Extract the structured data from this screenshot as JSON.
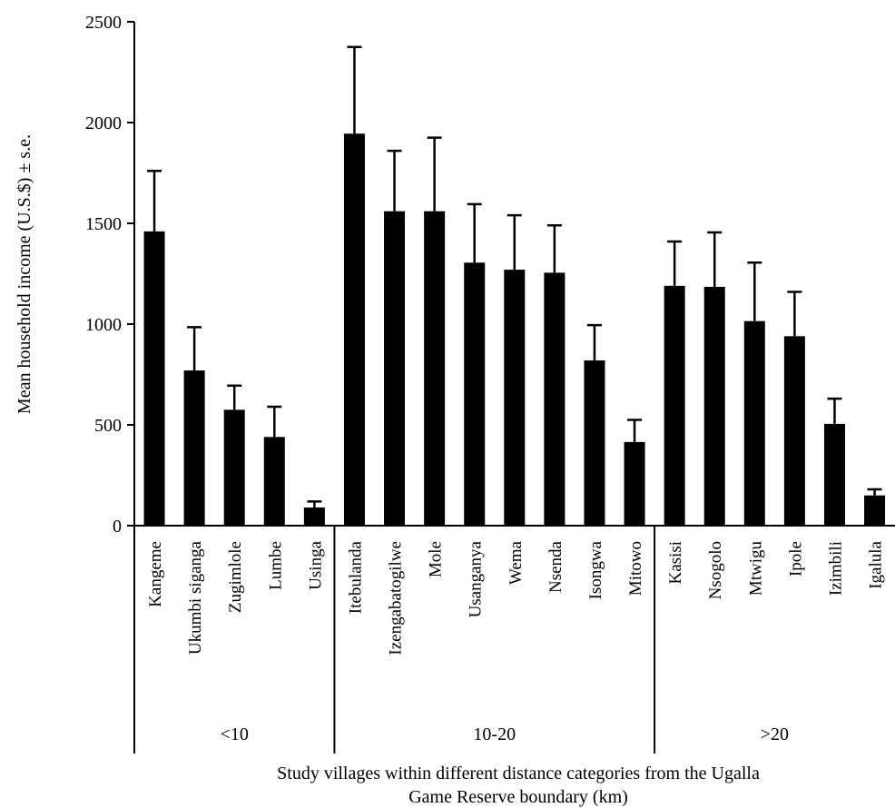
{
  "chart_data": {
    "type": "bar",
    "title": "",
    "ylabel": "Mean household income (U.S.$) ± s.e.",
    "xlabel_lines": [
      "Study villages within different distance categories from the Ugalla",
      "Game Reserve boundary (km)"
    ],
    "ylim": [
      0,
      2500
    ],
    "yticks": [
      0,
      500,
      1000,
      1500,
      2000,
      2500
    ],
    "grid": false,
    "groups": [
      {
        "label": "<10",
        "categories": [
          "Kangeme",
          "Ukumbi siganga",
          "Zugimlole",
          "Lumbe",
          "Usinga"
        ],
        "values": [
          1460,
          770,
          575,
          440,
          90
        ],
        "errors": [
          300,
          215,
          120,
          150,
          30
        ]
      },
      {
        "label": "10-20",
        "categories": [
          "Itebulanda",
          "Izengabatogilwe",
          "Mole",
          "Usanganya",
          "Wema",
          "Nsenda",
          "Isongwa",
          "Mitowo"
        ],
        "values": [
          1945,
          1560,
          1560,
          1305,
          1270,
          1255,
          820,
          415
        ],
        "errors": [
          430,
          300,
          365,
          290,
          270,
          235,
          175,
          110
        ]
      },
      {
        "label": ">20",
        "categories": [
          "Kasisi",
          "Nsogolo",
          "Mtwigu",
          "Ipole",
          "Izimbili",
          "Igalula"
        ],
        "values": [
          1190,
          1185,
          1015,
          940,
          505,
          150
        ],
        "errors": [
          220,
          270,
          290,
          220,
          125,
          30
        ]
      }
    ],
    "bar_color": "#000000"
  }
}
